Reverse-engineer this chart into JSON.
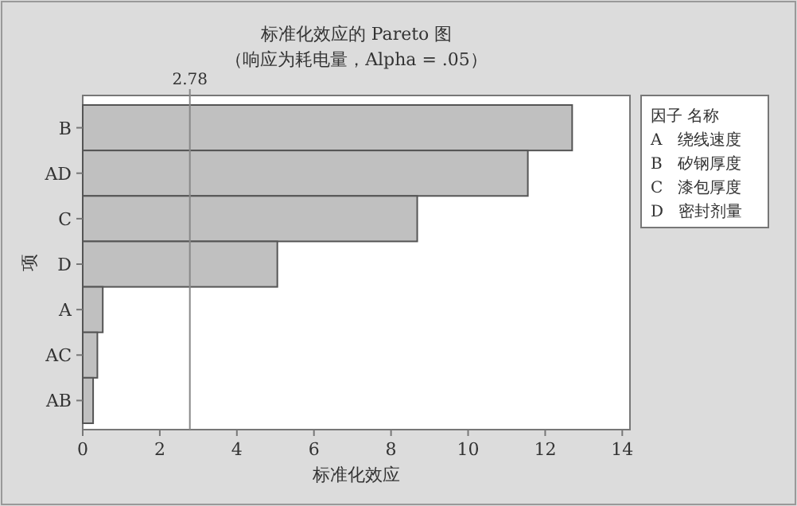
{
  "chart_data": {
    "type": "bar",
    "orientation": "horizontal",
    "title": "标准化效应的 Pareto 图",
    "subtitle": "（响应为耗电量，Alpha = .05）",
    "xlabel": "标准化效应",
    "ylabel": "项",
    "categories": [
      "B",
      "AD",
      "C",
      "D",
      "A",
      "AC",
      "AB"
    ],
    "values": [
      12.7,
      11.55,
      8.68,
      5.05,
      0.52,
      0.38,
      0.27
    ],
    "color": "#c0c0c0",
    "xlim": [
      0,
      14.2
    ],
    "xticks": [
      0,
      2,
      4,
      6,
      8,
      10,
      12,
      14
    ],
    "ref_lines": [
      {
        "axis": "x",
        "value": 2.78,
        "label": "2.78",
        "color": "#888888"
      }
    ],
    "annotations": [
      "因子 名称",
      "A   绕线速度",
      "B   矽钢厚度",
      "C   漆包厚度",
      "D   密封剂量"
    ],
    "grid": false
  }
}
